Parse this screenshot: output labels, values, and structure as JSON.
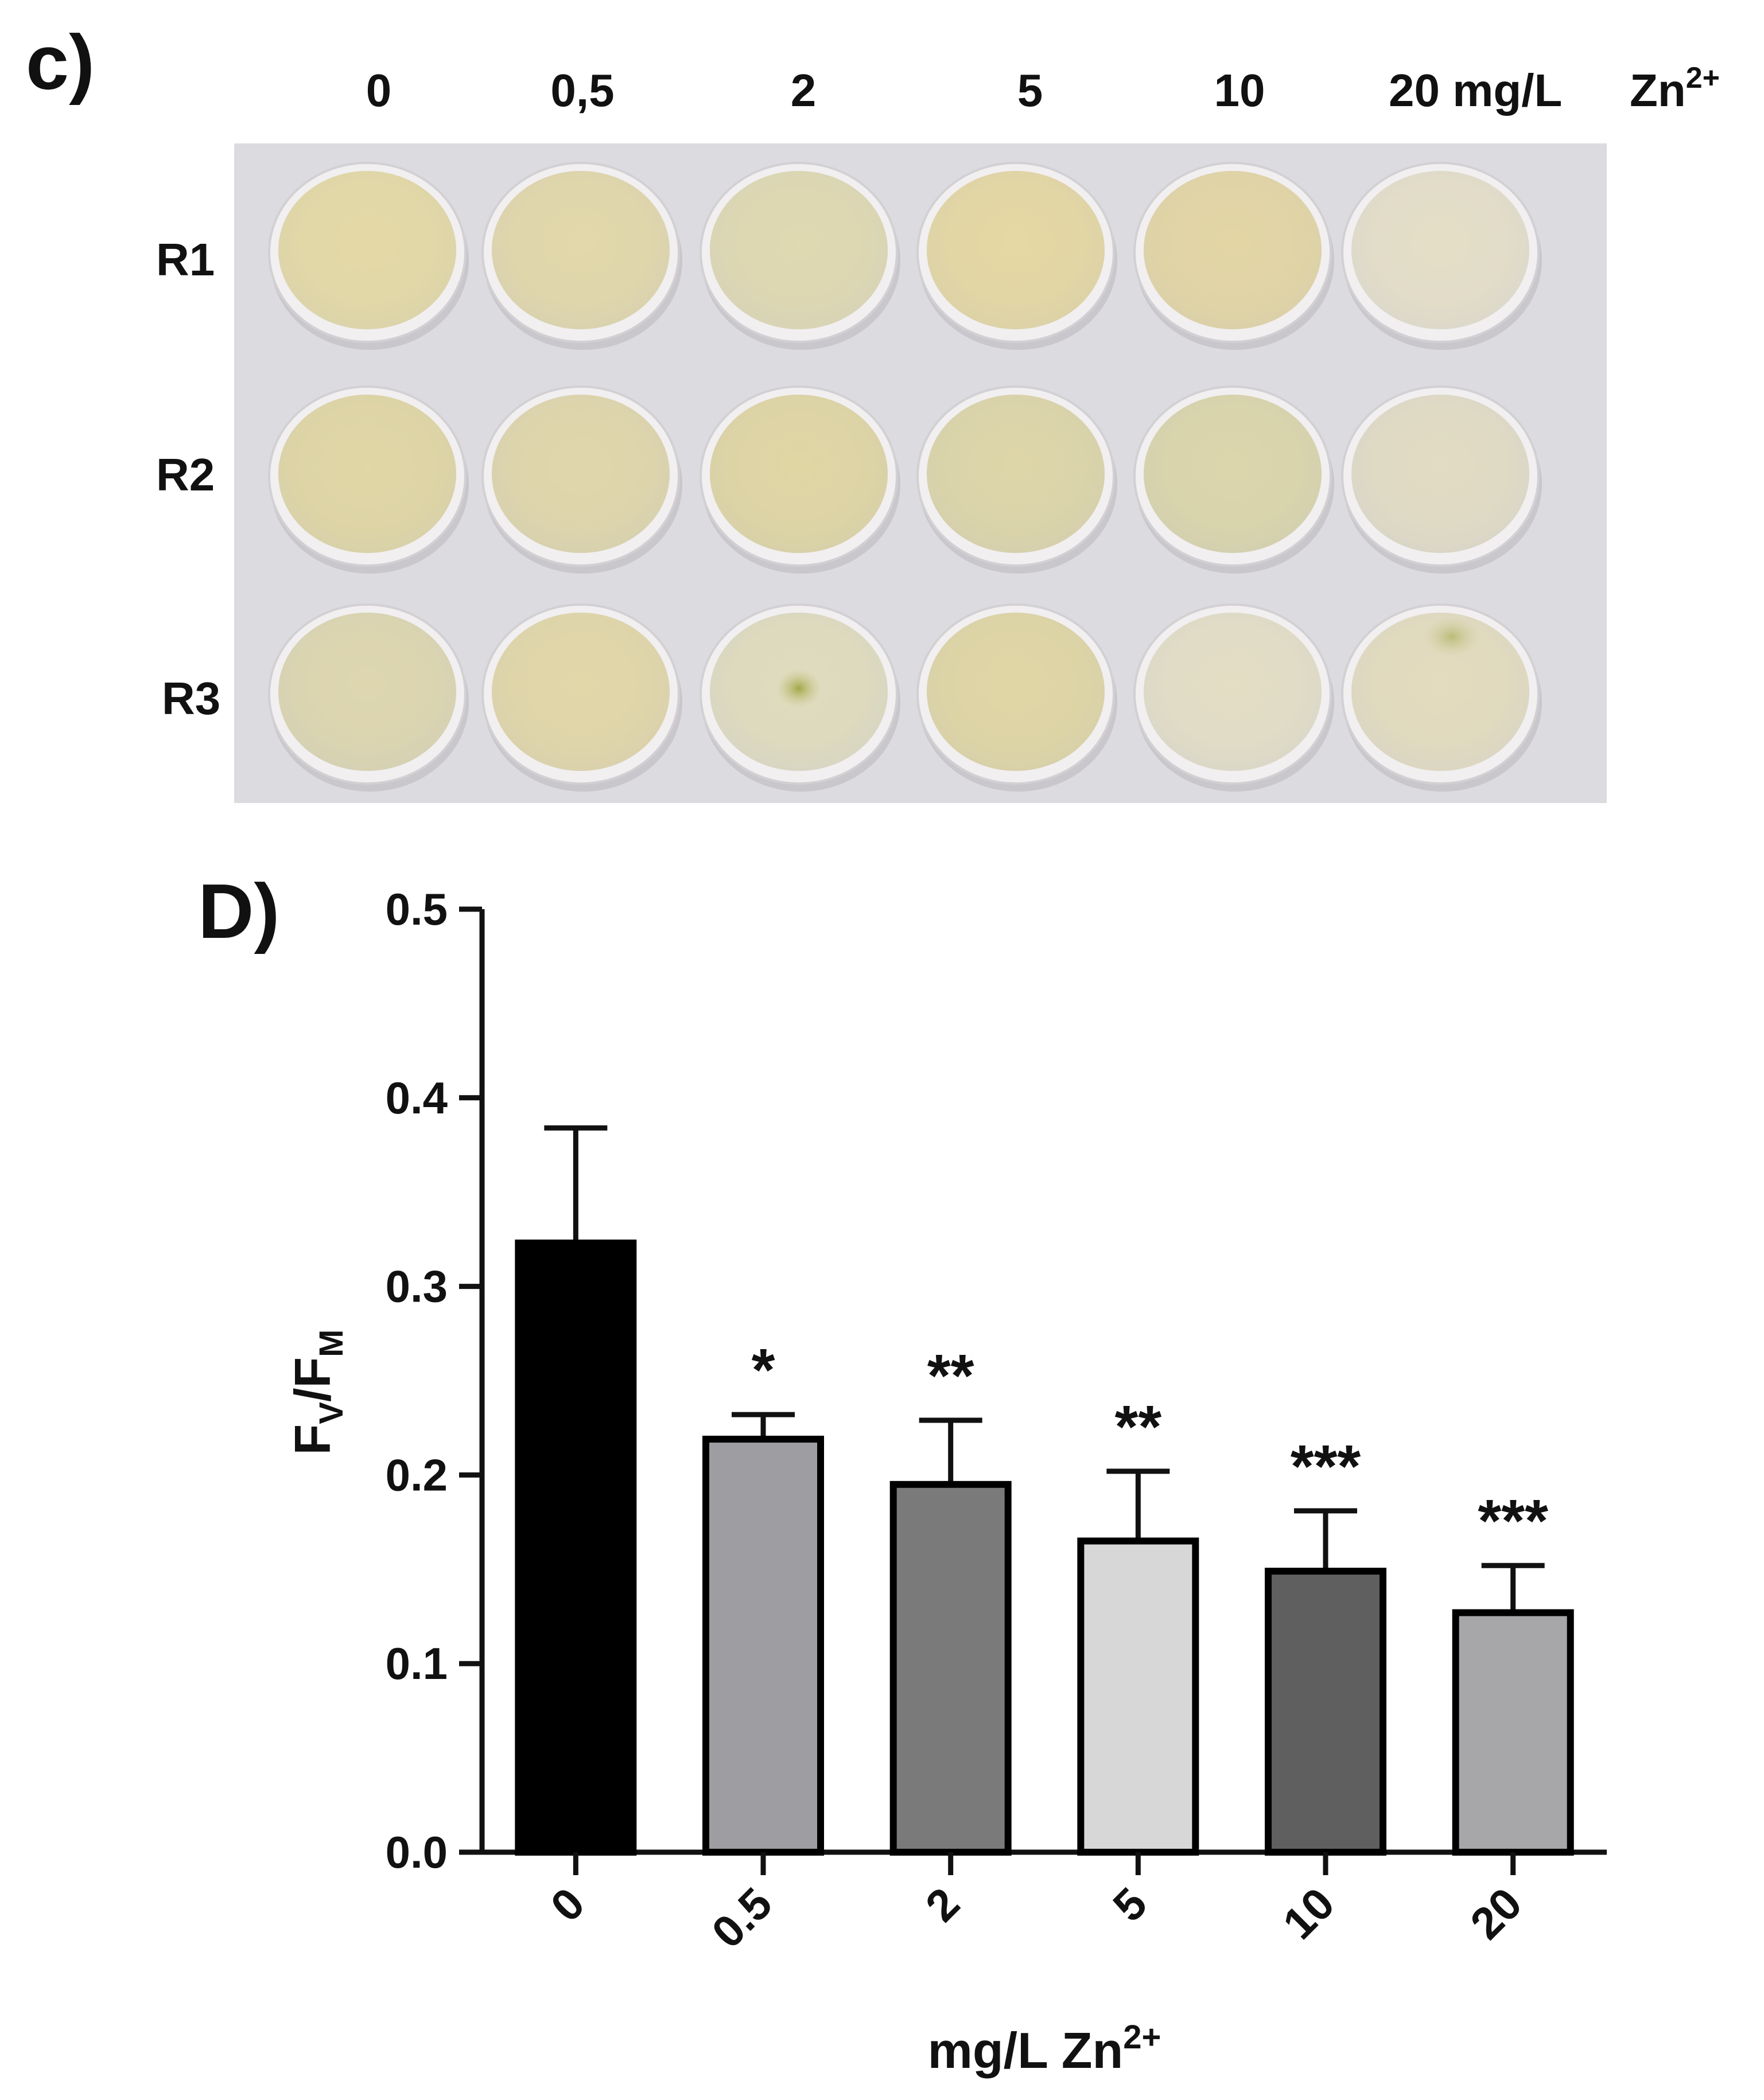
{
  "panel_c": {
    "label": "c)",
    "concentrations": [
      "0",
      "0,5",
      "2",
      "5",
      "10",
      "20 mg/L"
    ],
    "unit_base": "Zn",
    "unit_sup": "2+",
    "rows": [
      "R1",
      "R2",
      "R3"
    ]
  },
  "panel_d": {
    "label": "D)"
  },
  "chart_data": {
    "type": "bar",
    "categories": [
      "0",
      "0.5",
      "2",
      "5",
      "10",
      "20"
    ],
    "values": [
      0.323,
      0.219,
      0.195,
      0.165,
      0.149,
      0.127
    ],
    "errors": [
      0.061,
      0.013,
      0.034,
      0.037,
      0.032,
      0.025
    ],
    "significance": [
      "",
      "*",
      "**",
      "**",
      "***",
      "***"
    ],
    "bar_colors": [
      "#000000",
      "#9e9ea2",
      "#7a7a7a",
      "#d7d7d7",
      "#5f5f5f",
      "#a7a7aa"
    ],
    "ylim": [
      0.0,
      0.5
    ],
    "yticks": [
      "0.0",
      "0.1",
      "0.2",
      "0.3",
      "0.4",
      "0.5"
    ],
    "ylabel": {
      "main": "F",
      "sub1": "V",
      "slash": "/F",
      "sub2": "M"
    },
    "xlabel": {
      "base": "mg/L Zn",
      "sup": "2+"
    },
    "grid": false
  }
}
